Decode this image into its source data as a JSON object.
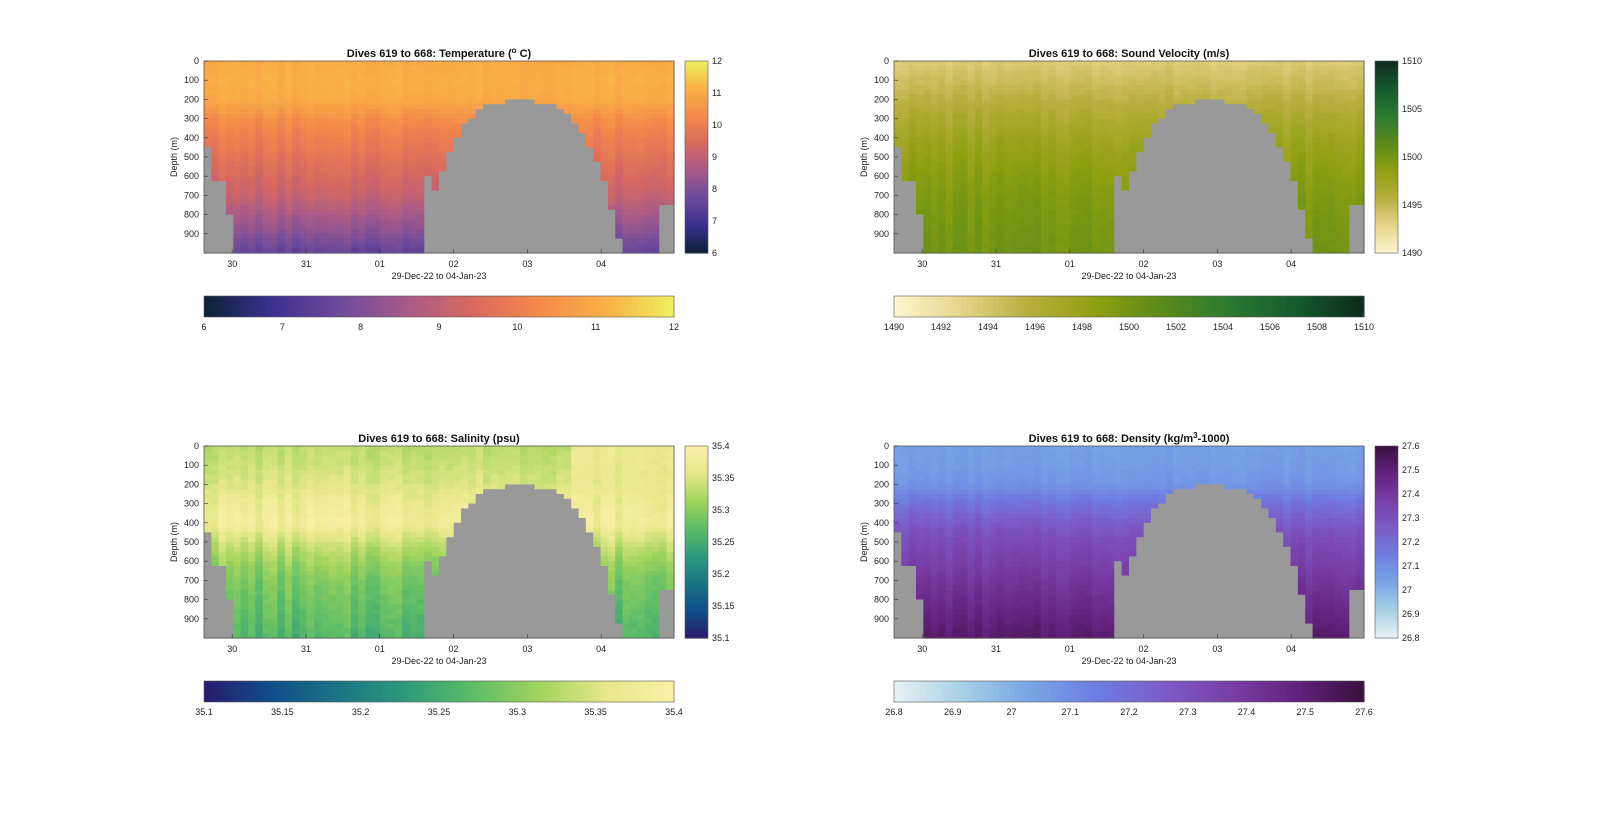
{
  "figure": {
    "panels": [
      {
        "key": "temperature",
        "title": "Dives 619 to 668: Temperature (° C)",
        "title_main": "Dives 619 to 668: Temperature (",
        "title_sup": "o",
        "title_tail": " C)",
        "ylabel": "Depth (m)",
        "xlabel": "29-Dec-22 to 04-Jan-23",
        "x_ticks": [
          "30",
          "31",
          "01",
          "02",
          "03",
          "04"
        ],
        "y_ticks": [
          "0",
          "100",
          "200",
          "300",
          "400",
          "500",
          "600",
          "700",
          "800",
          "900"
        ],
        "colorbar_ticks": [
          "6",
          "7",
          "8",
          "9",
          "10",
          "11",
          "12"
        ],
        "colorbar_range": [
          6,
          12
        ],
        "colormap": "thermal",
        "colors": [
          "#0b2236",
          "#3b2f8f",
          "#6c4a9c",
          "#a65a8a",
          "#d9695f",
          "#f48a4a",
          "#f9b145",
          "#eef060"
        ]
      },
      {
        "key": "sound",
        "title": "Dives 619 to 668: Sound Velocity (m/s)",
        "ylabel": "Depth (m)",
        "xlabel": "29-Dec-22 to 04-Jan-23",
        "x_ticks": [
          "30",
          "31",
          "01",
          "02",
          "03",
          "04"
        ],
        "y_ticks": [
          "0",
          "100",
          "200",
          "300",
          "400",
          "500",
          "600",
          "700",
          "800",
          "900"
        ],
        "colorbar_ticks": [
          "1490",
          "1495",
          "1500",
          "1505",
          "1510"
        ],
        "h_colorbar_ticks": [
          "1490",
          "1492",
          "1494",
          "1496",
          "1498",
          "1500",
          "1502",
          "1504",
          "1506",
          "1508",
          "1510"
        ],
        "colorbar_range": [
          1490,
          1510
        ],
        "colormap": "speed",
        "colors": [
          "#fdf7d1",
          "#e6d58a",
          "#b8ae3e",
          "#8ea010",
          "#5a8a1a",
          "#2a7a30",
          "#145a2e",
          "#0e2a1e"
        ]
      },
      {
        "key": "salinity",
        "title": "Dives 619 to 668: Salinity (psu)",
        "ylabel": "Depth (m)",
        "xlabel": "29-Dec-22 to 04-Jan-23",
        "x_ticks": [
          "30",
          "31",
          "01",
          "02",
          "03",
          "04"
        ],
        "y_ticks": [
          "0",
          "100",
          "200",
          "300",
          "400",
          "500",
          "600",
          "700",
          "800",
          "900"
        ],
        "colorbar_ticks": [
          "35.1",
          "35.15",
          "35.2",
          "35.25",
          "35.3",
          "35.35",
          "35.4"
        ],
        "colorbar_range": [
          35.1,
          35.4
        ],
        "colormap": "haline",
        "colors": [
          "#2a1a6e",
          "#0f4d8a",
          "#1a7584",
          "#2e9a7c",
          "#5cbd66",
          "#a2d45e",
          "#e6e88a",
          "#fcf0a8"
        ]
      },
      {
        "key": "density",
        "title": "Dives 619 to 668: Density (kg/m³-1000)",
        "title_main": "Dives 619 to 668: Density (kg/m",
        "title_sup": "3",
        "title_tail": "-1000)",
        "ylabel": "Depth (m)",
        "xlabel": "29-Dec-22 to 04-Jan-23",
        "x_ticks": [
          "30",
          "31",
          "01",
          "02",
          "03",
          "04"
        ],
        "y_ticks": [
          "0",
          "100",
          "200",
          "300",
          "400",
          "500",
          "600",
          "700",
          "800",
          "900"
        ],
        "colorbar_ticks": [
          "26.8",
          "26.9",
          "27",
          "27.1",
          "27.2",
          "27.3",
          "27.4",
          "27.5",
          "27.6"
        ],
        "colorbar_range": [
          26.8,
          27.6
        ],
        "colormap": "dense",
        "colors": [
          "#e8f2f4",
          "#a8d0e6",
          "#78a6e6",
          "#6e7fe2",
          "#7c5cc8",
          "#7a3ea8",
          "#62227e",
          "#3a0f3e"
        ]
      }
    ],
    "nodata_color": "#999999"
  },
  "chart_data": [
    {
      "type": "heatmap",
      "title": "Dives 619 to 668: Temperature (° C)",
      "xlabel": "29-Dec-22 to 04-Jan-23",
      "ylabel": "Depth (m)",
      "xlim": [
        "2022-12-29",
        "2023-01-04"
      ],
      "ylim": [
        1000,
        0
      ],
      "x_ticks": [
        "2022-12-30",
        "2022-12-31",
        "2023-01-01",
        "2023-01-02",
        "2023-01-03",
        "2023-01-04"
      ],
      "depth_levels": [
        0,
        100,
        200,
        300,
        400,
        500,
        600,
        700,
        800,
        900,
        1000
      ],
      "profile": {
        "depth": [
          0,
          100,
          200,
          300,
          400,
          500,
          600,
          700,
          800,
          900,
          1000
        ],
        "value": [
          11.0,
          11.1,
          11.0,
          10.4,
          10.0,
          9.7,
          9.4,
          9.1,
          8.6,
          8.1,
          7.5
        ]
      },
      "value_range": [
        6,
        12
      ],
      "colorbar_label": "Temperature (° C)"
    },
    {
      "type": "heatmap",
      "title": "Dives 619 to 668: Sound Velocity (m/s)",
      "xlabel": "29-Dec-22 to 04-Jan-23",
      "ylabel": "Depth (m)",
      "xlim": [
        "2022-12-29",
        "2023-01-04"
      ],
      "ylim": [
        1000,
        0
      ],
      "profile": {
        "depth": [
          0,
          100,
          200,
          300,
          400,
          500,
          600,
          700,
          800,
          900,
          1000
        ],
        "value": [
          1493.5,
          1494.5,
          1495.5,
          1496.5,
          1497.5,
          1498.2,
          1498.8,
          1499.3,
          1499.6,
          1499.9,
          1500.0
        ]
      },
      "value_range": [
        1490,
        1510
      ],
      "colorbar_label": "Sound Velocity (m/s)"
    },
    {
      "type": "heatmap",
      "title": "Dives 619 to 668: Salinity (psu)",
      "xlabel": "29-Dec-22 to 04-Jan-23",
      "ylabel": "Depth (m)",
      "xlim": [
        "2022-12-29",
        "2023-01-04"
      ],
      "ylim": [
        1000,
        0
      ],
      "profile": {
        "depth": [
          0,
          100,
          200,
          300,
          400,
          500,
          600,
          700,
          800,
          900,
          1000
        ],
        "value": [
          35.33,
          35.34,
          35.35,
          35.37,
          35.38,
          35.34,
          35.31,
          35.29,
          35.28,
          35.27,
          35.26
        ]
      },
      "value_range": [
        35.1,
        35.4
      ],
      "colorbar_label": "Salinity (psu)"
    },
    {
      "type": "heatmap",
      "title": "Dives 619 to 668: Density (kg/m³-1000)",
      "xlabel": "29-Dec-22 to 04-Jan-23",
      "ylabel": "Depth (m)",
      "xlim": [
        "2022-12-29",
        "2023-01-04"
      ],
      "ylim": [
        1000,
        0
      ],
      "profile": {
        "depth": [
          0,
          100,
          200,
          300,
          400,
          500,
          600,
          700,
          800,
          900,
          1000
        ],
        "value": [
          27.05,
          27.06,
          27.08,
          27.18,
          27.26,
          27.32,
          27.36,
          27.4,
          27.44,
          27.48,
          27.52
        ]
      },
      "value_range": [
        26.8,
        27.6
      ],
      "colorbar_label": "Density (kg/m³-1000)"
    }
  ]
}
